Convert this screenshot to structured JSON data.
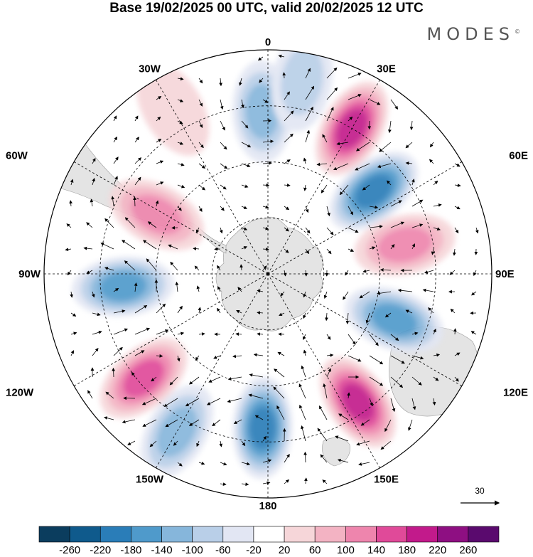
{
  "title": "Base 19/02/2025 00 UTC, valid 20/02/2025 12 UTC",
  "brand": "MODES",
  "brand_mark": "©",
  "map": {
    "projection": "south polar stereographic",
    "longitude_labels": [
      {
        "text": "0",
        "lon": 0
      },
      {
        "text": "30E",
        "lon": 30
      },
      {
        "text": "60E",
        "lon": 60
      },
      {
        "text": "90E",
        "lon": 90
      },
      {
        "text": "120E",
        "lon": 120
      },
      {
        "text": "150E",
        "lon": 150
      },
      {
        "text": "180",
        "lon": 180
      },
      {
        "text": "150W",
        "lon": -150
      },
      {
        "text": "120W",
        "lon": -120
      },
      {
        "text": "90W",
        "lon": -90
      },
      {
        "text": "60W",
        "lon": -60
      },
      {
        "text": "30W",
        "lon": -30
      }
    ],
    "vector_reference": {
      "value": "30"
    }
  },
  "colorbar": {
    "labels": [
      "-260",
      "-220",
      "-180",
      "-140",
      "-100",
      "-60",
      "-20",
      "20",
      "60",
      "100",
      "140",
      "180",
      "220",
      "260"
    ],
    "colors": [
      "#0b3d5e",
      "#0f5a8c",
      "#2a7db8",
      "#4f9acb",
      "#86b6db",
      "#b9cfe8",
      "#e2e6f3",
      "#ffffff",
      "#f6d6d9",
      "#f3b3c3",
      "#ee85ad",
      "#e04a99",
      "#c21a8b",
      "#8e0f82",
      "#5a0a6e"
    ]
  },
  "anomaly_cells": [
    {
      "lat": -30,
      "lon": 30,
      "value": 210
    },
    {
      "lat": -42,
      "lon": 52,
      "value": -210
    },
    {
      "lat": -40,
      "lon": 78,
      "value": 120
    },
    {
      "lat": -42,
      "lon": 110,
      "value": -170
    },
    {
      "lat": -34,
      "lon": 145,
      "value": 190
    },
    {
      "lat": -35,
      "lon": -178,
      "value": -190
    },
    {
      "lat": -25,
      "lon": -150,
      "value": -110
    },
    {
      "lat": -32,
      "lon": -130,
      "value": 150
    },
    {
      "lat": -38,
      "lon": -95,
      "value": -160
    },
    {
      "lat": -45,
      "lon": -62,
      "value": 130
    },
    {
      "lat": -32,
      "lon": -2,
      "value": -110
    },
    {
      "lat": -22,
      "lon": -30,
      "value": 50
    },
    {
      "lat": -20,
      "lon": 10,
      "value": -70
    }
  ]
}
